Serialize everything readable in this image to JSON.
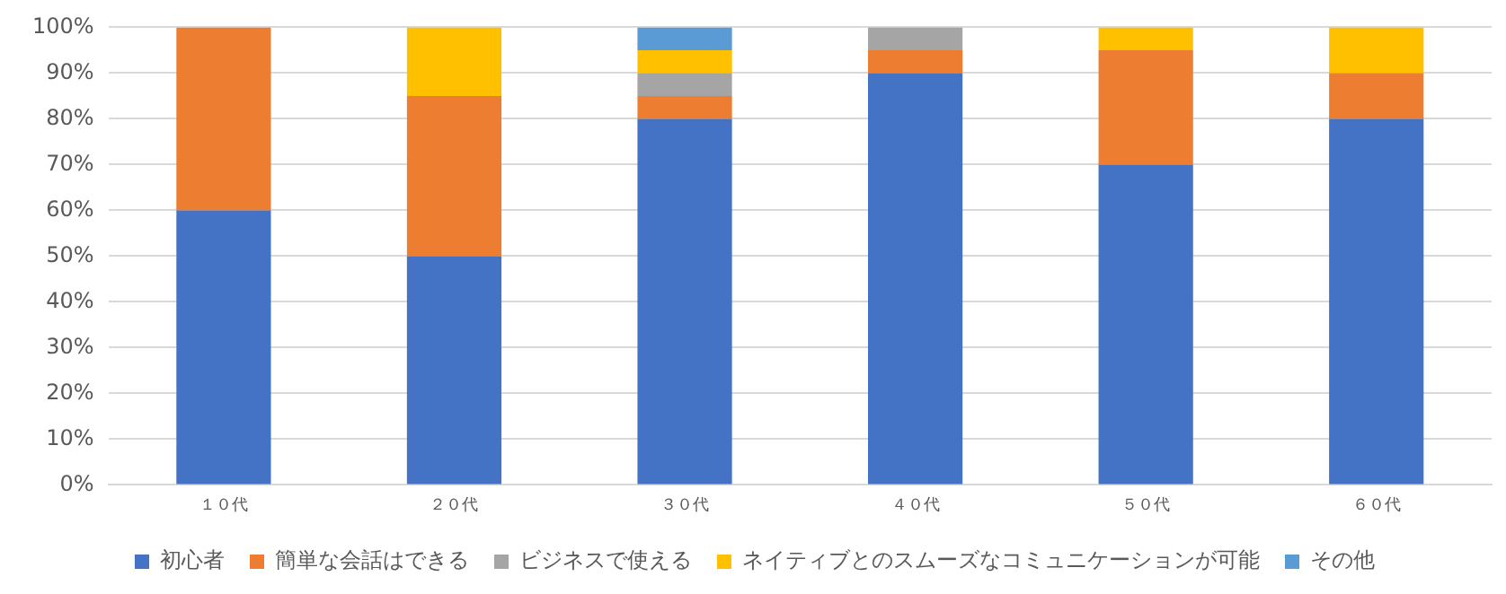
{
  "chart_data": {
    "type": "bar",
    "stacked": true,
    "categories": [
      "１０代",
      "２０代",
      "３０代",
      "４０代",
      "５０代",
      "６０代"
    ],
    "series": [
      {
        "name": "初心者",
        "color": "#4472c4",
        "values": [
          60,
          50,
          80,
          90,
          70,
          80
        ]
      },
      {
        "name": "簡単な会話はできる",
        "color": "#ed7d31",
        "values": [
          40,
          35,
          5,
          5,
          25,
          10
        ]
      },
      {
        "name": "ビジネスで使える",
        "color": "#a5a5a5",
        "values": [
          0,
          0,
          5,
          5,
          0,
          0
        ]
      },
      {
        "name": "ネイティブとのスムーズなコミュニケーションが可能",
        "color": "#ffc000",
        "values": [
          0,
          15,
          5,
          0,
          5,
          10
        ]
      },
      {
        "name": "その他",
        "color": "#5b9bd5",
        "values": [
          0,
          0,
          5,
          0,
          0,
          0
        ]
      }
    ],
    "ylim": [
      0,
      100
    ],
    "yticks": [
      {
        "value": 0,
        "label": "0%"
      },
      {
        "value": 10,
        "label": "10%"
      },
      {
        "value": 20,
        "label": "20%"
      },
      {
        "value": 30,
        "label": "30%"
      },
      {
        "value": 40,
        "label": "40%"
      },
      {
        "value": 50,
        "label": "50%"
      },
      {
        "value": 60,
        "label": "60%"
      },
      {
        "value": 70,
        "label": "70%"
      },
      {
        "value": 80,
        "label": "80%"
      },
      {
        "value": 90,
        "label": "90%"
      },
      {
        "value": 100,
        "label": "100%"
      }
    ],
    "grid": "y",
    "legend": "bottom"
  }
}
